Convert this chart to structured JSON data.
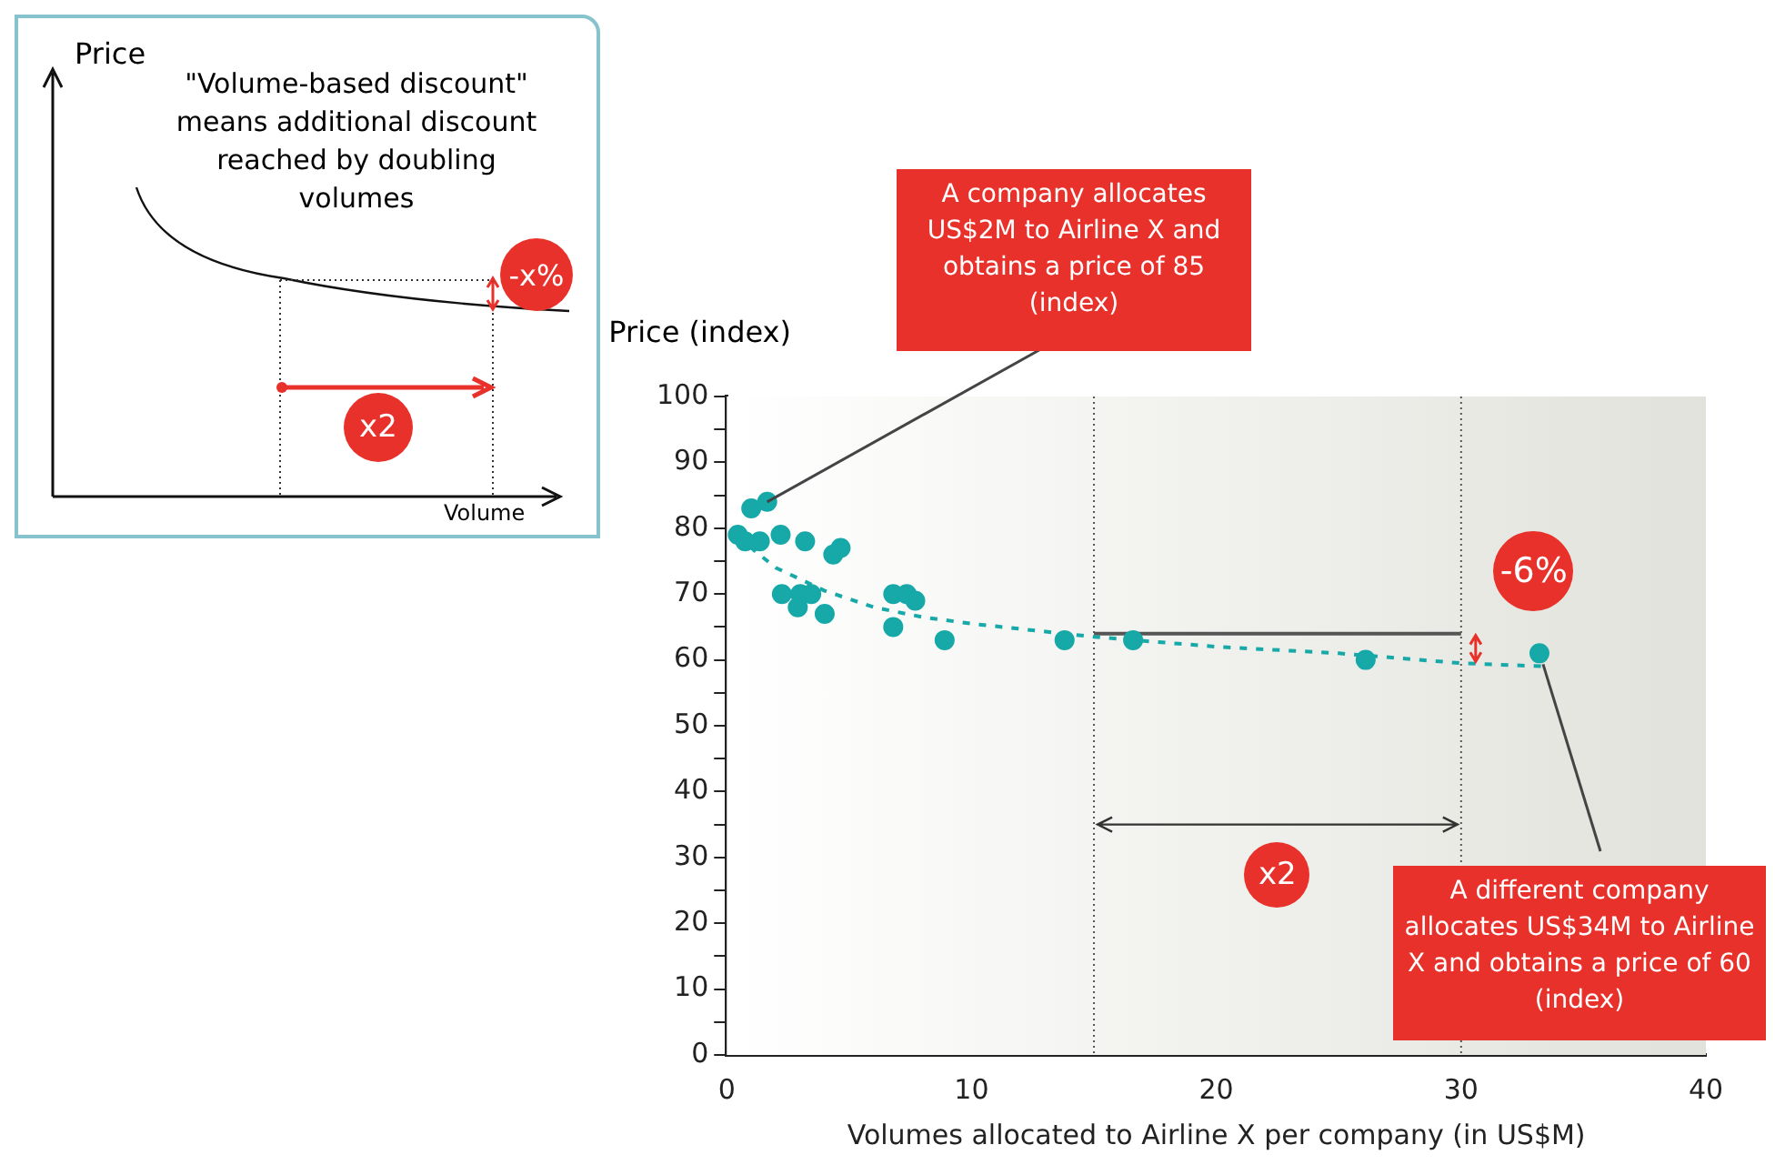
{
  "chart_data": {
    "type": "scatter",
    "xlabel": "Volumes allocated to Airline X per company (in US$M)",
    "ylabel": "Price (index)",
    "xlim": [
      0,
      40
    ],
    "xticks": [
      0,
      10,
      20,
      30,
      40
    ],
    "ylim": [
      0,
      100
    ],
    "yticks": [
      0,
      {
        "value": 5,
        "label": null
      },
      10,
      {
        "value": 15,
        "label": null
      },
      20,
      {
        "value": 25,
        "label": null
      },
      30,
      {
        "value": 35,
        "label": null
      },
      40,
      {
        "value": 45,
        "label": null
      },
      50,
      {
        "value": 55,
        "label": null
      },
      60,
      {
        "value": 65,
        "label": null
      },
      70,
      {
        "value": 75,
        "label": null
      },
      80,
      {
        "value": 85,
        "label": null
      },
      90,
      {
        "value": 95,
        "label": null
      },
      100
    ],
    "grid": false,
    "legend": false,
    "marker": "circle",
    "series": [
      {
        "type": "scatter",
        "color": "#17a8a8",
        "x": [
          0.45,
          0.75,
          1.0,
          1.65,
          1.35,
          2.2,
          2.25,
          3.2,
          2.9,
          3.0,
          3.45,
          4.0,
          4.35,
          4.65,
          6.8,
          6.8,
          7.35,
          7.7,
          8.9,
          13.8,
          16.6,
          26.1,
          33.2
        ],
        "values": [
          79,
          78,
          83,
          84,
          78,
          79,
          70,
          78,
          68,
          70,
          70,
          67,
          76,
          77,
          70,
          65,
          70,
          69,
          63,
          63,
          63,
          60,
          61
        ]
      },
      {
        "type": "line",
        "color": "#17a8a8",
        "line_style": "dashed",
        "marker": "none",
        "x": [
          0.5,
          1,
          2,
          4,
          6,
          8,
          10,
          15,
          20,
          25,
          30,
          33.5
        ],
        "values": [
          79,
          77,
          74,
          70.5,
          68,
          66.5,
          65.5,
          63.5,
          62,
          61,
          59.5,
          59
        ]
      },
      {
        "type": "line",
        "color": "#555555",
        "line_style": "solid",
        "marker": "none",
        "x": [
          15,
          30
        ],
        "values": [
          64,
          64
        ]
      }
    ],
    "ref_lines": [
      {
        "axis": "x",
        "value": 15,
        "color": "#555555",
        "line_style": "dotted"
      },
      {
        "axis": "x",
        "value": 30,
        "color": "#555555",
        "line_style": "dotted"
      }
    ],
    "annotations": [
      "Price",
      "\"Volume-based discount\" means additional discount reached by doubling volumes",
      "-x%",
      "x2",
      "Volume",
      {
        "text": "A company allocates US$2M to Airline X and obtains a price of 85 (index)",
        "x": 1.65,
        "y": 84
      },
      {
        "text": "-6%",
        "x": 30,
        "y": 62
      },
      "x2",
      {
        "text": "A different company allocates  US$34M to Airline X and obtains a price of 60 (index)",
        "x": 33.2,
        "y": 61
      }
    ]
  }
}
